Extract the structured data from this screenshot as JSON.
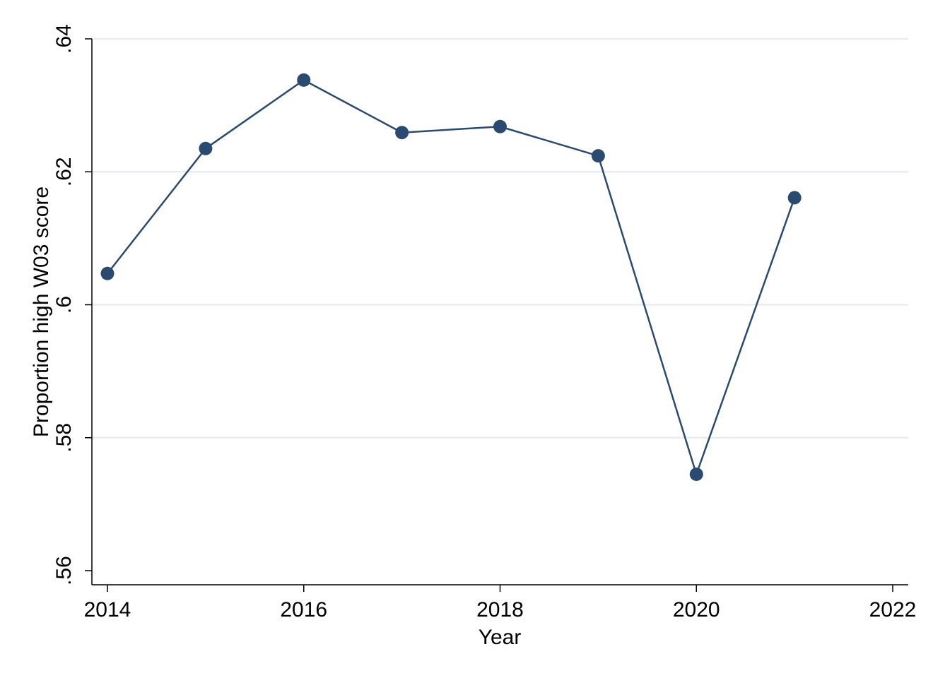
{
  "chart_data": {
    "type": "line",
    "title": "",
    "xlabel": "Year",
    "ylabel": "Proportion high W03 score",
    "xlim": [
      2014,
      2022
    ],
    "ylim": [
      0.56,
      0.64
    ],
    "x_ticks": [
      2014,
      2016,
      2018,
      2020,
      2022
    ],
    "x_tick_labels": [
      "2014",
      "2016",
      "2018",
      "2020",
      "2022"
    ],
    "y_ticks": [
      0.56,
      0.58,
      0.6,
      0.62,
      0.64
    ],
    "y_tick_labels": [
      ".56",
      ".58",
      ".6",
      ".62",
      ".64"
    ],
    "grid": "horizontal",
    "legend": "none",
    "series": [
      {
        "color": "#2b4a6f",
        "x": [
          2014,
          2015,
          2016,
          2017,
          2018,
          2019,
          2020,
          2021
        ],
        "values": [
          0.6047,
          0.6235,
          0.6338,
          0.6259,
          0.6268,
          0.6224,
          0.5745,
          0.6161
        ]
      }
    ]
  },
  "colors": {
    "series": "#2b4a6f",
    "grid": "#e8eef0",
    "axis": "#000000"
  }
}
